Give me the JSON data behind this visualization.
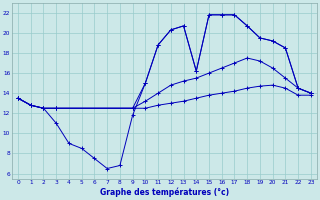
{
  "xlabel": "Graphe des températures (°c)",
  "bg_color": "#cce8e8",
  "line_color": "#0000bb",
  "grid_color": "#99cccc",
  "xlim": [
    -0.5,
    23.5
  ],
  "ylim": [
    5.5,
    23
  ],
  "xticks": [
    0,
    1,
    2,
    3,
    4,
    5,
    6,
    7,
    8,
    9,
    10,
    11,
    12,
    13,
    14,
    15,
    16,
    17,
    18,
    19,
    20,
    21,
    22,
    23
  ],
  "yticks": [
    6,
    8,
    10,
    12,
    14,
    16,
    18,
    20,
    22
  ],
  "series": {
    "line1": {
      "x": [
        0,
        1,
        2,
        3,
        9,
        10,
        11,
        12,
        13,
        14,
        15,
        16,
        17,
        18,
        19,
        20,
        21,
        22,
        23
      ],
      "y": [
        13.5,
        12.8,
        12.5,
        12.5,
        12.5,
        12.5,
        12.8,
        13.0,
        13.2,
        13.5,
        13.8,
        14.0,
        14.2,
        14.5,
        14.7,
        14.8,
        14.5,
        13.8,
        13.8
      ]
    },
    "line2": {
      "x": [
        0,
        1,
        2,
        3,
        9,
        10,
        11,
        12,
        13,
        14,
        15,
        16,
        17,
        18,
        19,
        20,
        21,
        22,
        23
      ],
      "y": [
        13.5,
        12.8,
        12.5,
        12.5,
        12.5,
        13.2,
        14.0,
        14.8,
        15.2,
        15.5,
        16.0,
        16.5,
        17.0,
        17.5,
        17.2,
        16.5,
        15.5,
        14.5,
        14.0
      ]
    },
    "line3": {
      "x": [
        0,
        1,
        2,
        3,
        9,
        10,
        11,
        12,
        13,
        14,
        15,
        16,
        17,
        18,
        19,
        20,
        21,
        22,
        23
      ],
      "y": [
        13.5,
        12.8,
        12.5,
        12.5,
        12.5,
        15.0,
        18.8,
        20.3,
        20.7,
        16.2,
        21.8,
        21.8,
        21.8,
        20.7,
        19.5,
        19.2,
        18.5,
        14.5,
        14.0
      ]
    },
    "line4": {
      "x": [
        0,
        1,
        2,
        3,
        4,
        5,
        6,
        7,
        8,
        9,
        10,
        11,
        12,
        13,
        14,
        15,
        16,
        17,
        18,
        19,
        20,
        21,
        22,
        23
      ],
      "y": [
        13.5,
        12.8,
        12.5,
        11.0,
        9.0,
        8.5,
        7.5,
        6.5,
        6.8,
        11.8,
        15.0,
        18.8,
        20.3,
        20.7,
        16.2,
        21.8,
        21.8,
        21.8,
        20.7,
        19.5,
        19.2,
        18.5,
        14.5,
        14.0
      ]
    }
  }
}
